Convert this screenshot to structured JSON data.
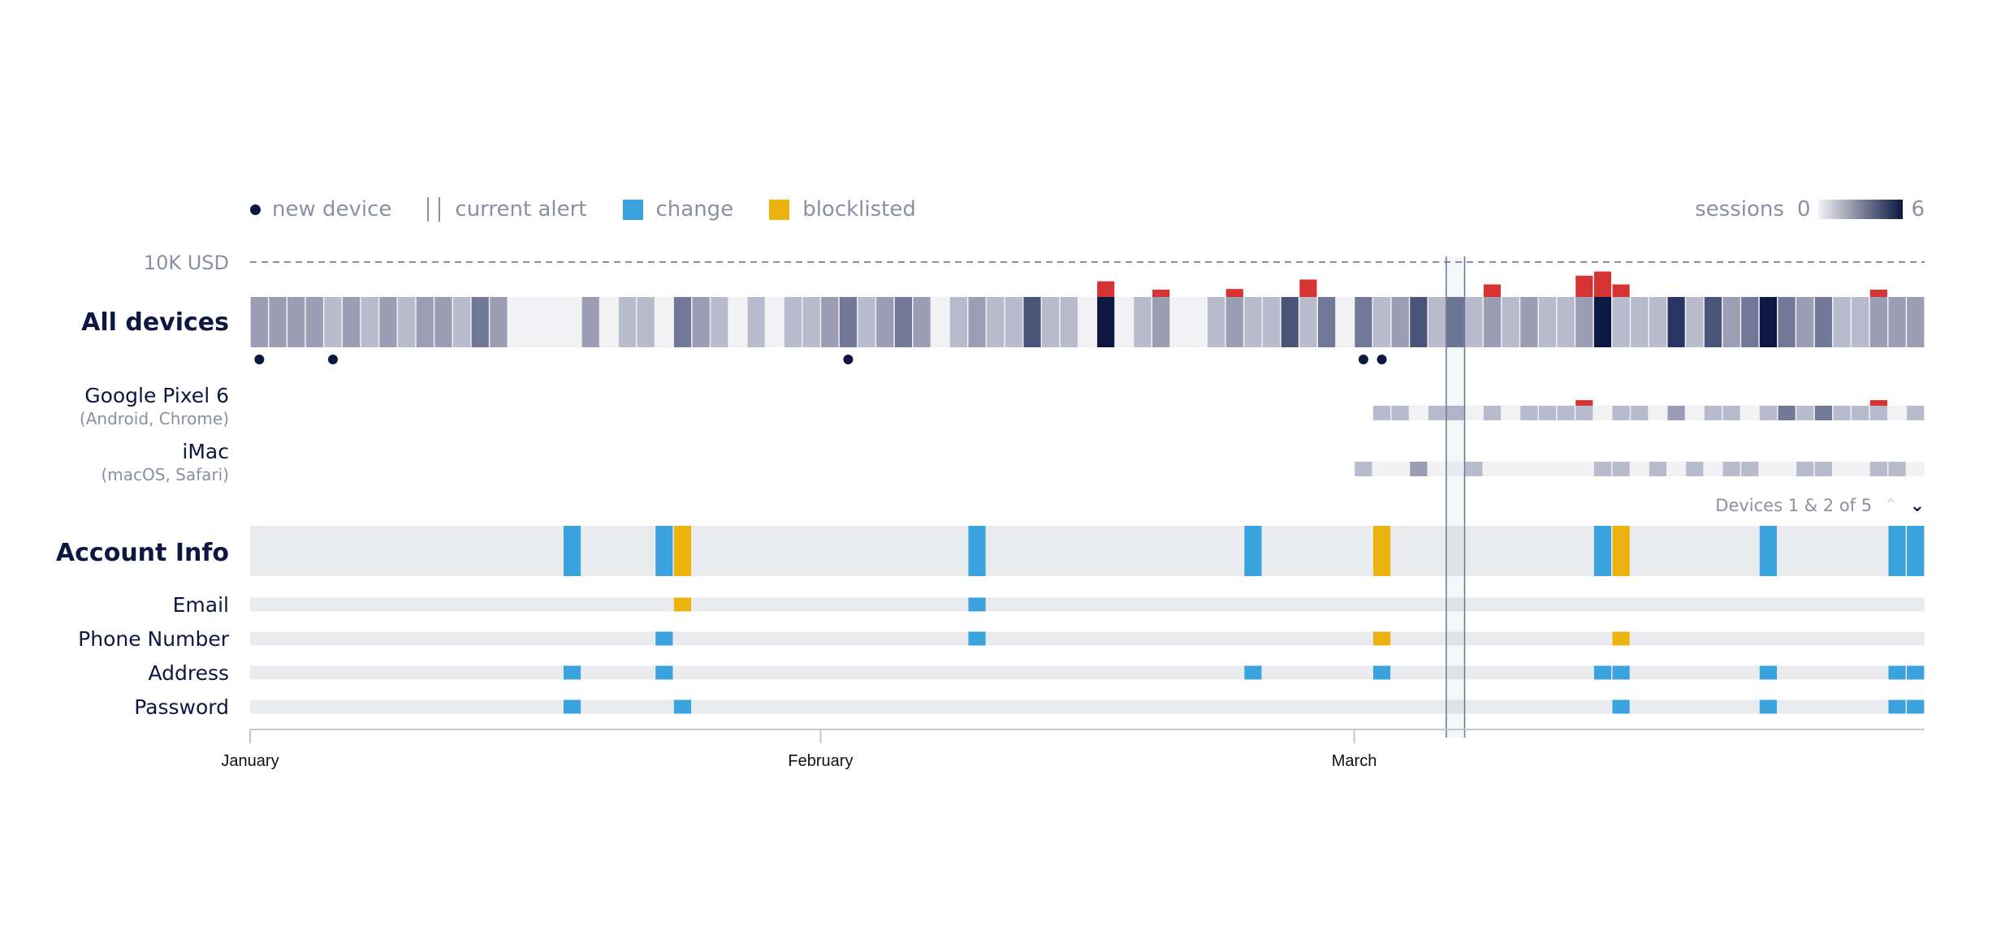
{
  "legend": {
    "new_device": "new device",
    "current_alert": "current alert",
    "change": "change",
    "blocklisted": "blocklisted",
    "sessions_label": "sessions",
    "sessions_min": "0",
    "sessions_max": "6"
  },
  "pager": {
    "text": "Devices 1 & 2 of 5"
  },
  "colors": {
    "change": "#3aa2dd",
    "blocklisted": "#ecb30f",
    "alert_spike": "#d63333",
    "new_device": "#0c1742",
    "session_dark": "#0c1742",
    "empty_track": "#f2f2f5",
    "info_track": "#eaebef"
  },
  "chart_data": {
    "type": "heatmap",
    "days": 91,
    "x_tick_labels": [
      {
        "label": "January",
        "day": 0
      },
      {
        "label": "February",
        "day": 31
      },
      {
        "label": "March",
        "day": 60
      }
    ],
    "threshold": {
      "label": "10K USD"
    },
    "current_alert": {
      "day": 65
    },
    "all_devices": {
      "label": "All devices",
      "sessions": [
        2,
        2,
        2,
        2,
        1,
        2,
        1,
        2,
        1,
        2,
        2,
        1,
        3,
        2,
        0,
        0,
        0,
        0,
        2,
        0,
        1,
        1,
        0,
        3,
        2,
        1,
        0,
        1,
        0,
        1,
        1,
        2,
        3,
        1,
        2,
        3,
        2,
        0,
        1,
        2,
        1,
        1,
        4,
        1,
        1,
        0,
        6,
        0,
        1,
        2,
        0,
        0,
        1,
        2,
        1,
        1,
        4,
        1,
        3,
        0,
        3,
        1,
        2,
        4,
        1,
        3,
        1,
        2,
        1,
        2,
        1,
        1,
        2,
        6,
        1,
        1,
        1,
        5,
        1,
        4,
        2,
        3,
        6,
        3,
        2,
        3,
        1,
        1,
        2,
        2,
        2
      ],
      "alert_amounts": [
        {
          "day": 46,
          "value": 4500
        },
        {
          "day": 49,
          "value": 2100
        },
        {
          "day": 53,
          "value": 2300
        },
        {
          "day": 57,
          "value": 5000
        },
        {
          "day": 67,
          "value": 3600
        },
        {
          "day": 72,
          "value": 6100
        },
        {
          "day": 73,
          "value": 7300
        },
        {
          "day": 74,
          "value": 3600
        },
        {
          "day": 88,
          "value": 2100
        }
      ],
      "new_device_days": [
        0,
        4,
        32,
        60,
        61
      ]
    },
    "devices": [
      {
        "name": "Google Pixel 6",
        "detail": "(Android, Chrome)",
        "sessions": [
          0,
          0,
          0,
          0,
          0,
          0,
          0,
          0,
          0,
          0,
          0,
          0,
          0,
          0,
          0,
          0,
          0,
          0,
          0,
          0,
          0,
          0,
          0,
          0,
          0,
          0,
          0,
          0,
          0,
          0,
          0,
          0,
          0,
          0,
          0,
          0,
          0,
          0,
          0,
          0,
          0,
          0,
          0,
          0,
          0,
          0,
          0,
          0,
          0,
          0,
          0,
          0,
          0,
          0,
          0,
          0,
          0,
          0,
          0,
          0,
          0,
          1,
          1,
          0,
          1,
          1,
          0,
          1,
          0,
          1,
          1,
          1,
          1,
          0,
          1,
          1,
          0,
          2,
          0,
          1,
          1,
          0,
          1,
          3,
          1,
          3,
          1,
          1,
          1,
          0,
          1
        ],
        "alert_amounts": [
          {
            "day": 72,
            "value": 1600
          },
          {
            "day": 88,
            "value": 1600
          }
        ]
      },
      {
        "name": "iMac",
        "detail": "(macOS, Safari)",
        "sessions": [
          0,
          0,
          0,
          0,
          0,
          0,
          0,
          0,
          0,
          0,
          0,
          0,
          0,
          0,
          0,
          0,
          0,
          0,
          0,
          0,
          0,
          0,
          0,
          0,
          0,
          0,
          0,
          0,
          0,
          0,
          0,
          0,
          0,
          0,
          0,
          0,
          0,
          0,
          0,
          0,
          0,
          0,
          0,
          0,
          0,
          0,
          0,
          0,
          0,
          0,
          0,
          0,
          0,
          0,
          0,
          0,
          0,
          0,
          0,
          0,
          1,
          0,
          0,
          2,
          0,
          0,
          1,
          0,
          0,
          0,
          0,
          0,
          0,
          1,
          1,
          0,
          1,
          0,
          1,
          0,
          1,
          1,
          0,
          0,
          1,
          1,
          0,
          0,
          1,
          1,
          0
        ],
        "alert_amounts": []
      }
    ],
    "account_info": {
      "label": "Account Info",
      "rows": [
        {
          "name": "Email",
          "change_days": [
            39
          ],
          "blocklisted_days": [
            23
          ]
        },
        {
          "name": "Phone Number",
          "change_days": [
            22,
            39
          ],
          "blocklisted_days": [
            61,
            74
          ]
        },
        {
          "name": "Address",
          "change_days": [
            17,
            22,
            54,
            61,
            73,
            74,
            82,
            89,
            90
          ],
          "blocklisted_days": []
        },
        {
          "name": "Password",
          "change_days": [
            17,
            23,
            74,
            82,
            89,
            90
          ],
          "blocklisted_days": []
        }
      ]
    }
  }
}
